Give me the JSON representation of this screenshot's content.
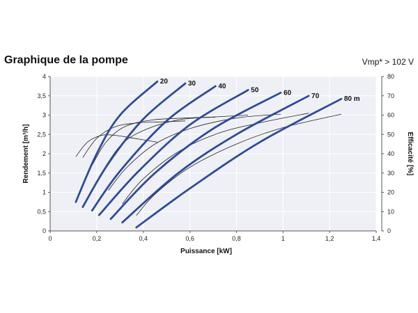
{
  "header": {
    "title": "Graphique de la pompe",
    "subtitle": "Vmp* > 102 V"
  },
  "chart_data": {
    "type": "line",
    "title": "Graphique de la pompe",
    "subtitle": "Vmp* > 102 V",
    "xlabel": "Puissance [kW]",
    "ylabel": "Rendement [m³/h]",
    "y2label": "Efficacité [%]",
    "xlim": [
      0,
      1.4
    ],
    "ylim": [
      0,
      4
    ],
    "y2lim": [
      0,
      80
    ],
    "xticks": [
      0,
      0.2,
      0.4,
      0.6,
      0.8,
      1,
      1.2,
      1.4
    ],
    "xtick_labels": [
      "0",
      "0,2",
      "0,4",
      "0,6",
      "0,8",
      "1",
      "1,2",
      "1,4"
    ],
    "yticks": [
      0,
      0.5,
      1,
      1.5,
      2,
      2.5,
      3,
      3.5,
      4
    ],
    "ytick_labels": [
      "0",
      "0,5",
      "1",
      "1,5",
      "2",
      "2,5",
      "3",
      "3,5",
      "4"
    ],
    "y2ticks": [
      0,
      10,
      20,
      30,
      40,
      50,
      60,
      70,
      80
    ],
    "y2tick_labels": [
      "0",
      "10",
      "20",
      "30",
      "40",
      "50",
      "60",
      "70",
      "80"
    ],
    "series_color": "#2e4a9a",
    "eff_color": "#222222",
    "flow_series": [
      {
        "name": "20",
        "points": [
          [
            0.11,
            0.75
          ],
          [
            0.2,
            2.0
          ],
          [
            0.3,
            3.0
          ],
          [
            0.46,
            3.87
          ]
        ]
      },
      {
        "name": "30",
        "points": [
          [
            0.14,
            0.62
          ],
          [
            0.25,
            1.75
          ],
          [
            0.4,
            2.9
          ],
          [
            0.58,
            3.82
          ]
        ]
      },
      {
        "name": "40",
        "points": [
          [
            0.18,
            0.53
          ],
          [
            0.3,
            1.55
          ],
          [
            0.5,
            2.85
          ],
          [
            0.71,
            3.75
          ]
        ]
      },
      {
        "name": "50",
        "points": [
          [
            0.21,
            0.41
          ],
          [
            0.38,
            1.55
          ],
          [
            0.6,
            2.75
          ],
          [
            0.85,
            3.65
          ]
        ]
      },
      {
        "name": "60",
        "points": [
          [
            0.26,
            0.31
          ],
          [
            0.45,
            1.5
          ],
          [
            0.7,
            2.65
          ],
          [
            0.99,
            3.58
          ]
        ]
      },
      {
        "name": "70",
        "points": [
          [
            0.31,
            0.22
          ],
          [
            0.55,
            1.5
          ],
          [
            0.8,
            2.5
          ],
          [
            1.11,
            3.5
          ]
        ]
      },
      {
        "name": "80 m",
        "points": [
          [
            0.37,
            0.09
          ],
          [
            0.6,
            1.1
          ],
          [
            0.9,
            2.3
          ],
          [
            1.25,
            3.42
          ]
        ]
      }
    ],
    "efficiency_series": [
      {
        "name": "20",
        "points": [
          [
            0.11,
            38.5
          ],
          [
            0.16,
            46
          ],
          [
            0.22,
            49.5
          ],
          [
            0.28,
            49.5
          ],
          [
            0.36,
            48
          ],
          [
            0.46,
            46
          ]
        ]
      },
      {
        "name": "30",
        "points": [
          [
            0.14,
            38
          ],
          [
            0.2,
            48
          ],
          [
            0.28,
            54
          ],
          [
            0.38,
            56
          ],
          [
            0.48,
            56.5
          ],
          [
            0.58,
            57
          ]
        ]
      },
      {
        "name": "40",
        "points": [
          [
            0.18,
            34
          ],
          [
            0.24,
            46
          ],
          [
            0.32,
            54
          ],
          [
            0.44,
            57.5
          ],
          [
            0.58,
            58.5
          ],
          [
            0.71,
            59
          ]
        ]
      },
      {
        "name": "50",
        "points": [
          [
            0.21,
            28
          ],
          [
            0.3,
            44
          ],
          [
            0.4,
            52
          ],
          [
            0.55,
            57.5
          ],
          [
            0.7,
            59
          ],
          [
            0.85,
            60
          ]
        ]
      },
      {
        "name": "60",
        "points": [
          [
            0.25,
            21
          ],
          [
            0.33,
            33
          ],
          [
            0.45,
            45
          ],
          [
            0.6,
            53
          ],
          [
            0.8,
            58.5
          ],
          [
            0.99,
            60.5
          ]
        ]
      },
      {
        "name": "70",
        "points": [
          [
            0.31,
            14
          ],
          [
            0.4,
            27
          ],
          [
            0.55,
            41
          ],
          [
            0.72,
            50.5
          ],
          [
            0.9,
            56
          ],
          [
            1.11,
            61
          ]
        ]
      },
      {
        "name": "80 m",
        "points": [
          [
            0.37,
            8
          ],
          [
            0.45,
            19
          ],
          [
            0.6,
            33
          ],
          [
            0.8,
            45
          ],
          [
            1.0,
            53.5
          ],
          [
            1.25,
            60.5
          ]
        ]
      }
    ]
  }
}
